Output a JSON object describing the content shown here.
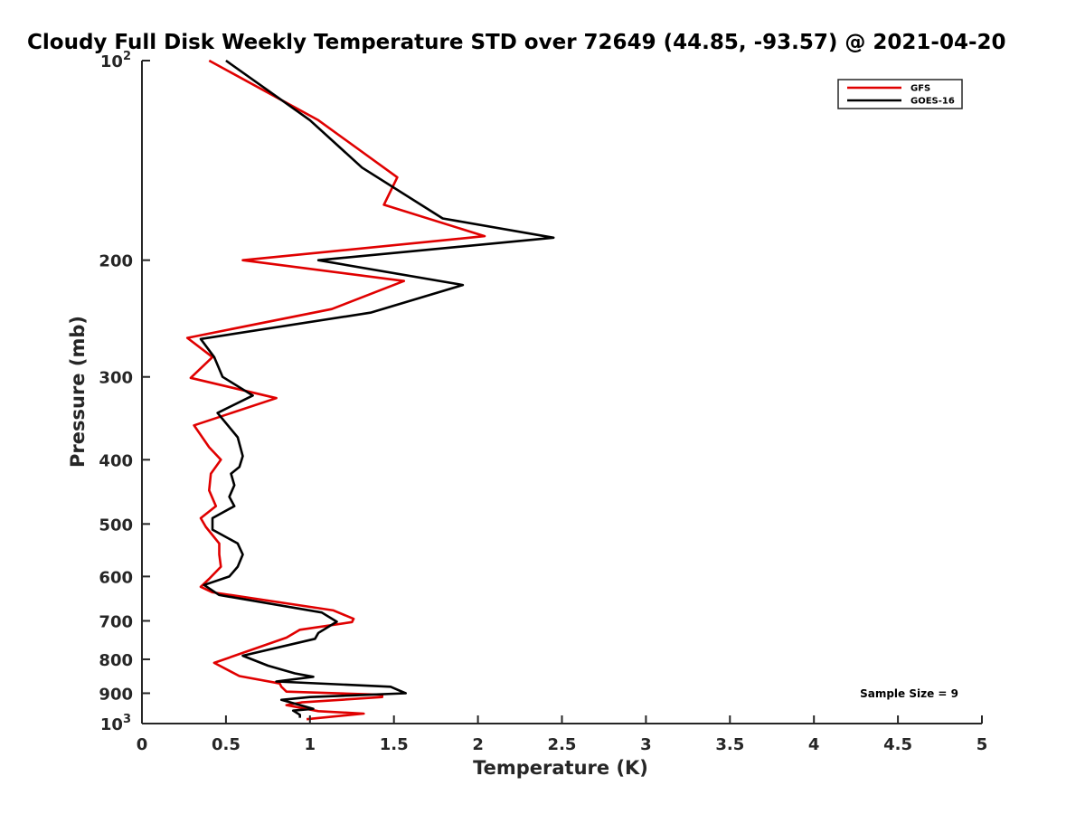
{
  "chart_data": {
    "type": "line",
    "title": "Cloudy Full Disk Weekly Temperature STD over 72649 (44.85, -93.57) @ 2021-04-20",
    "xlabel": "Temperature (K)",
    "ylabel": "Pressure (mb)",
    "xlim": [
      0,
      5
    ],
    "ylim": [
      100,
      1000
    ],
    "y_scale": "log",
    "y_reversed": true,
    "grid": false,
    "legend_position": "top-right",
    "x_ticks": [
      {
        "value": 0,
        "label": "0"
      },
      {
        "value": 0.5,
        "label": "0.5"
      },
      {
        "value": 1,
        "label": "1"
      },
      {
        "value": 1.5,
        "label": "1.5"
      },
      {
        "value": 2,
        "label": "2"
      },
      {
        "value": 2.5,
        "label": "2.5"
      },
      {
        "value": 3,
        "label": "3"
      },
      {
        "value": 3.5,
        "label": "3.5"
      },
      {
        "value": 4,
        "label": "4"
      },
      {
        "value": 4.5,
        "label": "4.5"
      },
      {
        "value": 5,
        "label": "5"
      }
    ],
    "y_ticks": [
      {
        "value": 100,
        "base": "10",
        "exp": "2"
      },
      {
        "value": 200,
        "base": "200",
        "exp": ""
      },
      {
        "value": 300,
        "base": "300",
        "exp": ""
      },
      {
        "value": 400,
        "base": "400",
        "exp": ""
      },
      {
        "value": 500,
        "base": "500",
        "exp": ""
      },
      {
        "value": 600,
        "base": "600",
        "exp": ""
      },
      {
        "value": 700,
        "base": "700",
        "exp": ""
      },
      {
        "value": 800,
        "base": "800",
        "exp": ""
      },
      {
        "value": 900,
        "base": "900",
        "exp": ""
      },
      {
        "value": 1000,
        "base": "10",
        "exp": "3"
      }
    ],
    "series": [
      {
        "name": "GFS",
        "color": "#e00000",
        "points": [
          [
            0.4,
            100
          ],
          [
            1.05,
            123
          ],
          [
            1.52,
            150
          ],
          [
            1.44,
            165
          ],
          [
            2.04,
            184
          ],
          [
            0.6,
            200
          ],
          [
            1.56,
            215
          ],
          [
            1.13,
            237
          ],
          [
            0.27,
            262
          ],
          [
            0.42,
            280
          ],
          [
            0.29,
            301
          ],
          [
            0.8,
            323
          ],
          [
            0.31,
            355
          ],
          [
            0.4,
            383
          ],
          [
            0.47,
            400
          ],
          [
            0.41,
            420
          ],
          [
            0.4,
            445
          ],
          [
            0.44,
            470
          ],
          [
            0.35,
            490
          ],
          [
            0.38,
            505
          ],
          [
            0.46,
            535
          ],
          [
            0.46,
            556
          ],
          [
            0.47,
            580
          ],
          [
            0.4,
            605
          ],
          [
            0.35,
            622
          ],
          [
            0.42,
            634
          ],
          [
            1.14,
            675
          ],
          [
            1.26,
            695
          ],
          [
            1.25,
            703
          ],
          [
            0.94,
            722
          ],
          [
            0.86,
            742
          ],
          [
            0.43,
            810
          ],
          [
            0.58,
            848
          ],
          [
            0.82,
            870
          ],
          [
            0.83,
            880
          ],
          [
            0.86,
            895
          ],
          [
            1.43,
            905
          ],
          [
            1.43,
            912
          ],
          [
            0.95,
            929
          ],
          [
            0.86,
            938
          ],
          [
            1.05,
            958
          ],
          [
            1.32,
            966
          ],
          [
            0.98,
            985
          ]
        ]
      },
      {
        "name": "GOES-16",
        "color": "#000000",
        "points": [
          [
            0.5,
            100
          ],
          [
            1.0,
            123
          ],
          [
            1.31,
            145
          ],
          [
            1.79,
            173
          ],
          [
            2.45,
            185
          ],
          [
            1.05,
            200
          ],
          [
            1.91,
            218
          ],
          [
            1.36,
            240
          ],
          [
            0.35,
            263
          ],
          [
            0.43,
            280
          ],
          [
            0.48,
            300
          ],
          [
            0.66,
            320
          ],
          [
            0.45,
            340
          ],
          [
            0.57,
            370
          ],
          [
            0.6,
            395
          ],
          [
            0.58,
            410
          ],
          [
            0.53,
            420
          ],
          [
            0.55,
            437
          ],
          [
            0.52,
            455
          ],
          [
            0.55,
            470
          ],
          [
            0.42,
            490
          ],
          [
            0.42,
            510
          ],
          [
            0.57,
            535
          ],
          [
            0.6,
            556
          ],
          [
            0.57,
            580
          ],
          [
            0.52,
            600
          ],
          [
            0.37,
            618
          ],
          [
            0.46,
            640
          ],
          [
            1.07,
            680
          ],
          [
            1.16,
            702
          ],
          [
            1.05,
            730
          ],
          [
            1.03,
            745
          ],
          [
            0.6,
            790
          ],
          [
            0.75,
            818
          ],
          [
            0.91,
            840
          ],
          [
            1.02,
            850
          ],
          [
            0.8,
            864
          ],
          [
            1.48,
            880
          ],
          [
            1.57,
            900
          ],
          [
            1.0,
            912
          ],
          [
            0.83,
            921
          ],
          [
            1.02,
            950
          ],
          [
            0.9,
            956
          ],
          [
            0.94,
            970
          ],
          [
            0.94,
            980
          ]
        ]
      }
    ],
    "annotation": "Sample Size = 9"
  }
}
